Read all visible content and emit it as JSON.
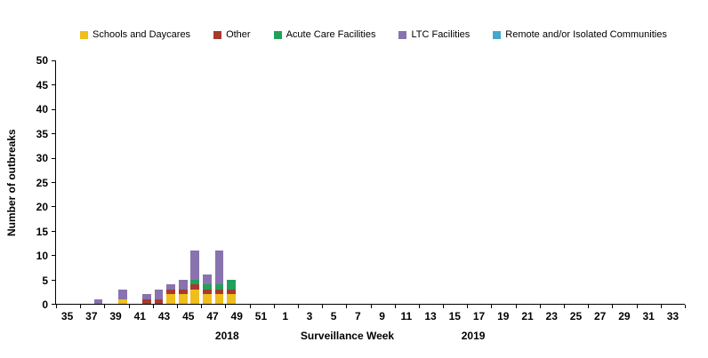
{
  "chart_data": {
    "type": "bar",
    "stacked": true,
    "title": "",
    "xlabel": "Surveillance Week",
    "ylabel": "Number of outbreaks",
    "ylim": [
      0,
      50
    ],
    "ytick_step": 5,
    "grid": false,
    "legend_position": "top",
    "year_left_label": "2018",
    "year_right_label": "2019",
    "xtick_labels": [
      "35",
      "37",
      "39",
      "41",
      "43",
      "45",
      "47",
      "49",
      "51",
      "1",
      "3",
      "5",
      "7",
      "9",
      "11",
      "13",
      "15",
      "17",
      "19",
      "21",
      "23",
      "25",
      "27",
      "29",
      "31",
      "33"
    ],
    "categories": [
      "35",
      "36",
      "37",
      "38",
      "39",
      "40",
      "41",
      "42",
      "43",
      "44",
      "45",
      "46",
      "47",
      "48",
      "49",
      "50",
      "51",
      "52",
      "1",
      "2",
      "3",
      "4",
      "5",
      "6",
      "7",
      "8",
      "9",
      "10",
      "11",
      "12",
      "13",
      "14",
      "15",
      "16",
      "17",
      "18",
      "19",
      "20",
      "21",
      "22",
      "23",
      "24",
      "25",
      "26",
      "27",
      "28",
      "29",
      "30",
      "31",
      "32",
      "33",
      "34"
    ],
    "series": [
      {
        "name": "Schools and Daycares",
        "color": "#EFBE1D",
        "values": [
          0,
          0,
          0,
          0,
          0,
          1,
          0,
          0,
          0,
          2,
          2,
          3,
          2,
          2,
          2,
          0,
          0,
          0,
          0,
          0,
          0,
          0,
          0,
          0,
          0,
          0,
          0,
          0,
          0,
          0,
          0,
          0,
          0,
          0,
          0,
          0,
          0,
          0,
          0,
          0,
          0,
          0,
          0,
          0,
          0,
          0,
          0,
          0,
          0,
          0,
          0,
          0
        ]
      },
      {
        "name": "Other",
        "color": "#A63A2E",
        "values": [
          0,
          0,
          0,
          0,
          0,
          0,
          0,
          1,
          1,
          1,
          1,
          1,
          1,
          1,
          1,
          0,
          0,
          0,
          0,
          0,
          0,
          0,
          0,
          0,
          0,
          0,
          0,
          0,
          0,
          0,
          0,
          0,
          0,
          0,
          0,
          0,
          0,
          0,
          0,
          0,
          0,
          0,
          0,
          0,
          0,
          0,
          0,
          0,
          0,
          0,
          0,
          0
        ]
      },
      {
        "name": "Acute Care Facilities",
        "color": "#22A05A",
        "values": [
          0,
          0,
          0,
          0,
          0,
          0,
          0,
          0,
          0,
          0,
          0,
          1,
          1,
          1,
          2,
          0,
          0,
          0,
          0,
          0,
          0,
          0,
          0,
          0,
          0,
          0,
          0,
          0,
          0,
          0,
          0,
          0,
          0,
          0,
          0,
          0,
          0,
          0,
          0,
          0,
          0,
          0,
          0,
          0,
          0,
          0,
          0,
          0,
          0,
          0,
          0,
          0
        ]
      },
      {
        "name": "LTC Facilities",
        "color": "#8873AE",
        "values": [
          0,
          0,
          0,
          1,
          0,
          2,
          0,
          1,
          2,
          1,
          2,
          6,
          2,
          7,
          0,
          0,
          0,
          0,
          0,
          0,
          0,
          0,
          0,
          0,
          0,
          0,
          0,
          0,
          0,
          0,
          0,
          0,
          0,
          0,
          0,
          0,
          0,
          0,
          0,
          0,
          0,
          0,
          0,
          0,
          0,
          0,
          0,
          0,
          0,
          0,
          0,
          0
        ]
      },
      {
        "name": "Remote and/or Isolated Communities",
        "color": "#44A8CB",
        "values": [
          0,
          0,
          0,
          0,
          0,
          0,
          0,
          0,
          0,
          0,
          0,
          0,
          0,
          0,
          0,
          0,
          0,
          0,
          0,
          0,
          0,
          0,
          0,
          0,
          0,
          0,
          0,
          0,
          0,
          0,
          0,
          0,
          0,
          0,
          0,
          0,
          0,
          0,
          0,
          0,
          0,
          0,
          0,
          0,
          0,
          0,
          0,
          0,
          0,
          0,
          0,
          0
        ]
      }
    ]
  }
}
